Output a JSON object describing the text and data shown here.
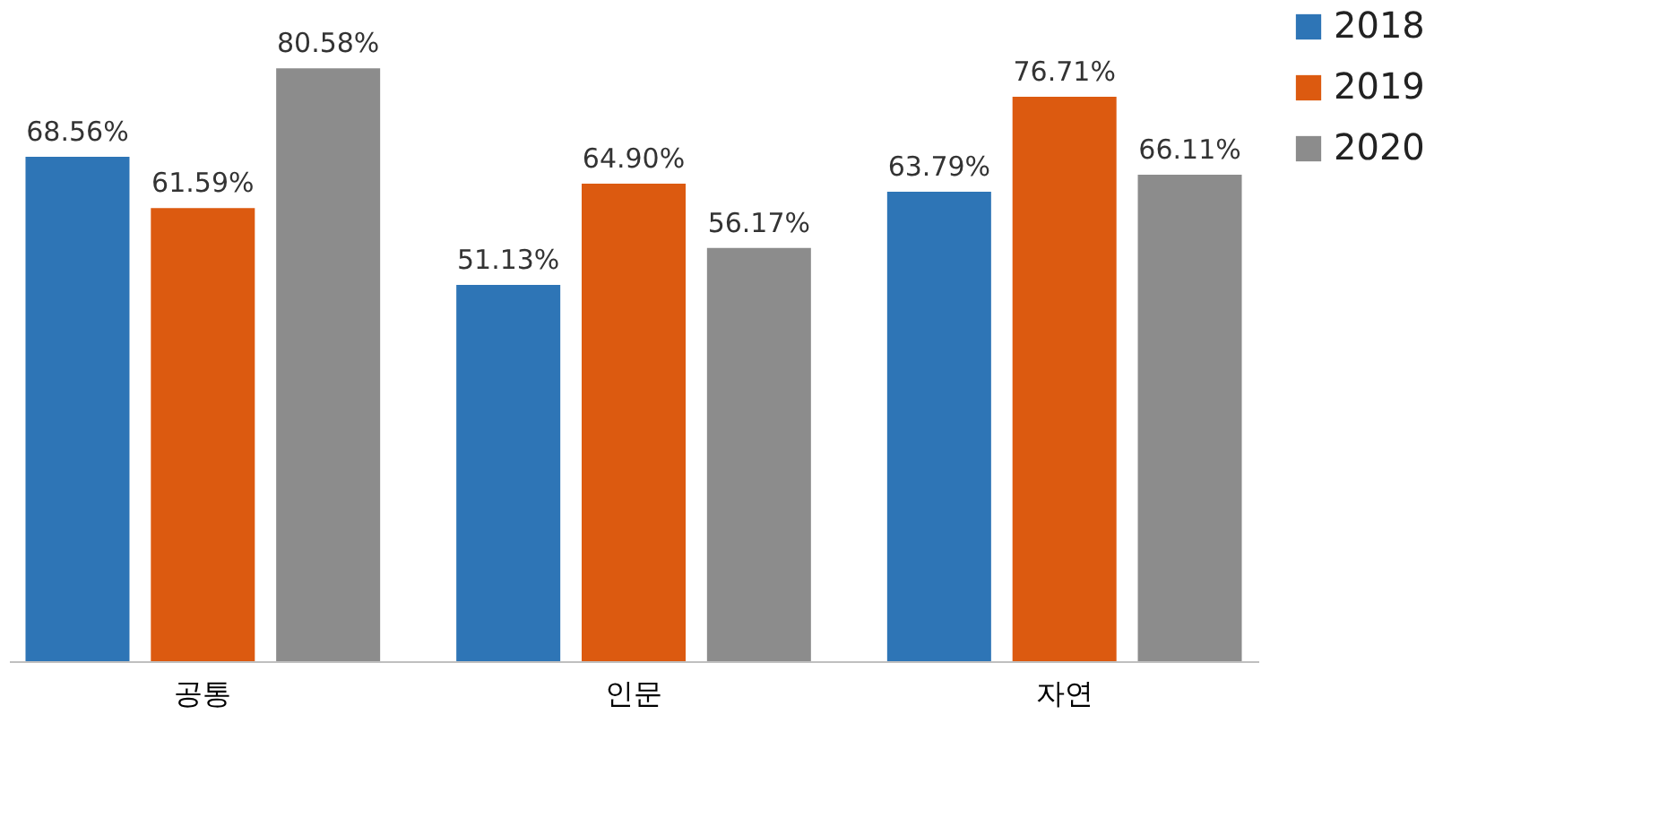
{
  "chart_data": {
    "type": "bar",
    "categories": [
      "공통",
      "인문",
      "자연"
    ],
    "series": [
      {
        "name": "2018",
        "color": "#2e75b6",
        "values": [
          68.56,
          51.13,
          63.79
        ],
        "value_labels": [
          "68.56%",
          "51.13%",
          "63.79%"
        ]
      },
      {
        "name": "2019",
        "color": "#dc5a10",
        "values": [
          61.59,
          64.9,
          76.71
        ],
        "value_labels": [
          "61.59%",
          "64.90%",
          "76.71%"
        ]
      },
      {
        "name": "2020",
        "color": "#8c8c8c",
        "values": [
          80.58,
          56.17,
          66.11
        ],
        "value_labels": [
          "80.58%",
          "56.17%",
          "66.11%"
        ]
      }
    ],
    "legend": "right",
    "grid": false
  }
}
